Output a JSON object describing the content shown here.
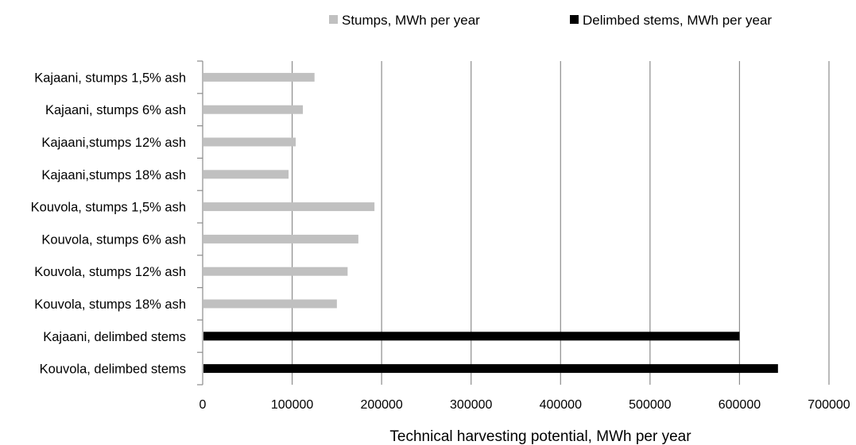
{
  "chart_data": {
    "type": "bar",
    "orientation": "horizontal",
    "categories": [
      "Kajaani, stumps 1,5% ash",
      "Kajaani, stumps 6% ash",
      "Kajaani,stumps 12% ash",
      "Kajaani,stumps 18% ash",
      "Kouvola, stumps 1,5% ash",
      "Kouvola, stumps 6% ash",
      "Kouvola, stumps 12% ash",
      "Kouvola, stumps 18% ash",
      "Kajaani, delimbed stems",
      "Kouvola, delimbed stems"
    ],
    "series": [
      {
        "name": "Stumps, MWh per year",
        "color": "#c0c0c0",
        "values": [
          125000,
          112000,
          104000,
          96000,
          192000,
          174000,
          162000,
          150000,
          null,
          null
        ]
      },
      {
        "name": "Delimbed stems, MWh per year",
        "color": "#000000",
        "values": [
          null,
          null,
          null,
          null,
          null,
          null,
          null,
          null,
          600000,
          643000
        ]
      }
    ],
    "xlabel": "Technical  harvesting potential, MWh per year",
    "ylabel": "",
    "xlim": [
      0,
      700000
    ],
    "xticks": [
      "0",
      "100000",
      "200000",
      "300000",
      "400000",
      "500000",
      "600000",
      "700000"
    ],
    "grid": "vertical",
    "legend_position": "top"
  }
}
